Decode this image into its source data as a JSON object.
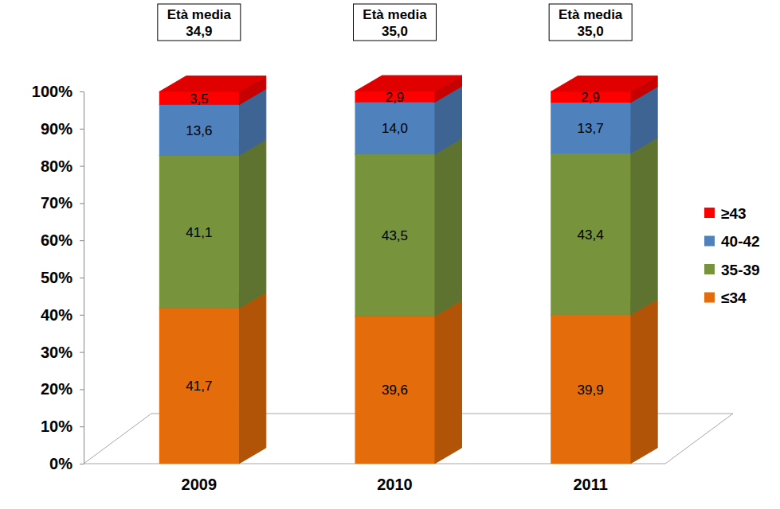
{
  "chart_data": {
    "type": "bar",
    "stacked": true,
    "data_labels": true,
    "legend": "right",
    "grid": false,
    "categories": [
      "2009",
      "2010",
      "2011"
    ],
    "ylim": [
      0,
      100
    ],
    "yticks": [
      {
        "value": 0,
        "label": "0%"
      },
      {
        "value": 10,
        "label": "10%"
      },
      {
        "value": 20,
        "label": "20%"
      },
      {
        "value": 30,
        "label": "30%"
      },
      {
        "value": 40,
        "label": "40%"
      },
      {
        "value": 50,
        "label": "50%"
      },
      {
        "value": 60,
        "label": "60%"
      },
      {
        "value": 70,
        "label": "70%"
      },
      {
        "value": 80,
        "label": "80%"
      },
      {
        "value": 90,
        "label": "90%"
      },
      {
        "value": 100,
        "label": "100%"
      }
    ],
    "series": [
      {
        "name": "≤34",
        "color": "#e46c0a",
        "values": [
          41.7,
          39.6,
          39.9
        ],
        "value_labels": [
          "41,7",
          "39,6",
          "39,9"
        ]
      },
      {
        "name": "35-39",
        "color": "#77933c",
        "values": [
          41.1,
          43.5,
          43.4
        ],
        "value_labels": [
          "41,1",
          "43,5",
          "43,4"
        ]
      },
      {
        "name": "40-42",
        "color": "#4f81bd",
        "values": [
          13.6,
          14.0,
          13.7
        ],
        "value_labels": [
          "13,6",
          "14,0",
          "13,7"
        ]
      },
      {
        "name": "≥43",
        "color": "#ff0000",
        "values": [
          3.5,
          2.9,
          2.9
        ],
        "value_labels": [
          "3,5",
          "2,9",
          "2,9"
        ]
      }
    ],
    "annotations": {
      "label": "Età media",
      "values": [
        34.9,
        35.0,
        35.0
      ],
      "value_labels": [
        "34,9",
        "35,0",
        "35,0"
      ]
    }
  }
}
